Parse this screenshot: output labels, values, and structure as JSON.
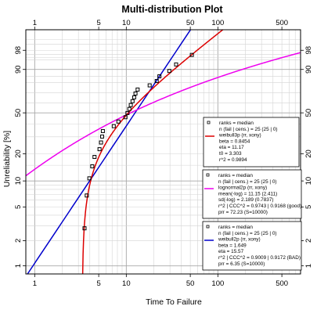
{
  "chart_data": {
    "type": "scatter",
    "title": "Multi-distribution Plot",
    "xlabel": "Time To Failure",
    "ylabel": "Unreliability [%]",
    "x_scale": "log",
    "y_scale": "weibull",
    "xlim": [
      0.8,
      800
    ],
    "ylim": [
      0.8,
      99.9
    ],
    "grid": true,
    "x_ticks": [
      "1",
      "5",
      "10",
      "50",
      "100",
      "500"
    ],
    "y_ticks": [
      "1",
      "2",
      "5",
      "10",
      "20",
      "50",
      "90",
      "98"
    ],
    "top_ticks": [
      "1",
      "5",
      "10",
      "50",
      "100",
      "500"
    ],
    "right_ticks": [
      "1",
      "2",
      "5",
      "10",
      "20",
      "50",
      "90",
      "98"
    ],
    "points": {
      "name": "ranks = median",
      "color": "#000000",
      "x": [
        3.5,
        3.7,
        3.95,
        4.25,
        4.5,
        5.1,
        5.3,
        5.45,
        5.55,
        7.3,
        8.2,
        9.8,
        10.3,
        10.8,
        11.2,
        11.7,
        12.2,
        12.6,
        13.3,
        18.0,
        21.5,
        23.0,
        29.5,
        35.0,
        52.0
      ],
      "y": [
        2.8,
        6.8,
        10.7,
        14.6,
        18.5,
        22.4,
        26.3,
        30.2,
        34.2,
        38.1,
        42.0,
        45.9,
        49.8,
        53.8,
        57.7,
        61.6,
        65.5,
        69.4,
        73.3,
        77.3,
        81.2,
        85.1,
        89.0,
        92.9,
        96.8
      ]
    },
    "series": [
      {
        "name": "weibull3p (rr, xony)",
        "color": "#dd0000",
        "model": {
          "dist": "weibull3p",
          "beta": 0.8454,
          "eta": 11.17,
          "t0": 3.303
        }
      },
      {
        "name": "lognormal2p (rr, xony)",
        "color": "#ee00ee",
        "model": {
          "dist": "lognormal",
          "mu": 11.15,
          "sigma": 2.189
        }
      },
      {
        "name": "weibull2p (rr, xony)",
        "color": "#0000cc",
        "model": {
          "dist": "weibull2p",
          "beta": 1.649,
          "eta": 15.57
        }
      }
    ]
  },
  "legends": [
    {
      "color": "#dd0000",
      "lines": [
        "ranks = median",
        "n (fail | cens.) = 25 (25 | 0)",
        "weibull3p (rr, xony)",
        "beta = 0.8454",
        "eta = 11.17",
        "t0 = 3.303",
        "r^2 = 0.9894"
      ]
    },
    {
      "color": "#ee00ee",
      "lines": [
        "ranks = median",
        "n (fail | cens.) = 25 (25 | 0)",
        "lognormal2p (rr, xony)",
        "mean(-log) = 11.15 (2.411)",
        "sd(-log) = 2.189 (0.7837)",
        "r^2 | CCC^2 = 0.9743 | 0.9168 (good)",
        "prr = 72.23 (S=10000)"
      ]
    },
    {
      "color": "#0000cc",
      "lines": [
        "ranks = median",
        "n (fail | cens.) = 25 (25 | 0)",
        "weibull2p (rr, xony)",
        "beta = 1.649",
        "eta = 15.57",
        "r^2 | CCC^2 = 0.9009 | 0.9172 (BAD)",
        "prr = 6.35 (S=10000)"
      ]
    }
  ]
}
